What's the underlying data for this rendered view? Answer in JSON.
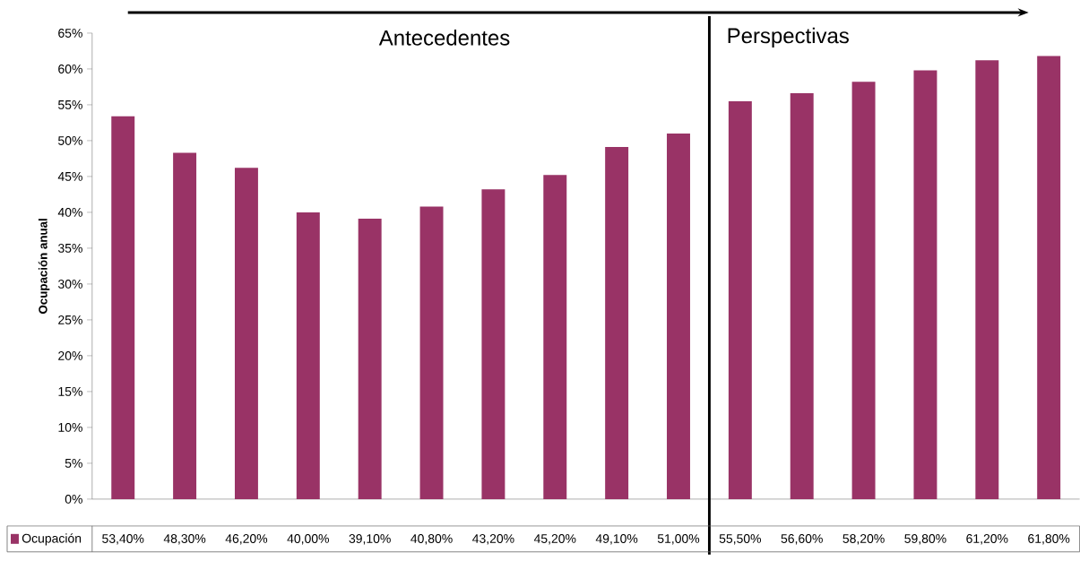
{
  "chart_data": {
    "type": "bar",
    "ylabel": "Ocupación anual",
    "categories": [
      null,
      null,
      null,
      null,
      null,
      null,
      null,
      null,
      null,
      null,
      null,
      null,
      null,
      null,
      null,
      null
    ],
    "series": [
      {
        "name": "Ocupación",
        "color": "#993366",
        "values": [
          53.4,
          48.3,
          46.2,
          40.0,
          39.1,
          40.8,
          43.2,
          45.2,
          49.1,
          51.0,
          55.5,
          56.6,
          58.2,
          59.8,
          61.2,
          61.8
        ],
        "value_labels": [
          "53,40%",
          "48,30%",
          "46,20%",
          "40,00%",
          "39,10%",
          "40,80%",
          "43,20%",
          "45,20%",
          "49,10%",
          "51,00%",
          "55,50%",
          "56,60%",
          "58,20%",
          "59,80%",
          "61,20%",
          "61,80%"
        ]
      }
    ],
    "ylim": [
      0,
      65
    ],
    "yticks": [
      {
        "value": 0,
        "label": "0%"
      },
      {
        "value": 5,
        "label": "5%"
      },
      {
        "value": 10,
        "label": "10%"
      },
      {
        "value": 15,
        "label": "15%"
      },
      {
        "value": 20,
        "label": "20%"
      },
      {
        "value": 25,
        "label": "25%"
      },
      {
        "value": 30,
        "label": "30%"
      },
      {
        "value": 35,
        "label": "35%"
      },
      {
        "value": 40,
        "label": "40%"
      },
      {
        "value": 45,
        "label": "45%"
      },
      {
        "value": 50,
        "label": "50%"
      },
      {
        "value": 55,
        "label": "55%"
      },
      {
        "value": 60,
        "label": "60%"
      },
      {
        "value": 65,
        "label": "65%"
      }
    ],
    "annotations": [
      "Antecedentes",
      "Perspectivas"
    ],
    "legend": "bottom",
    "grid": false
  }
}
